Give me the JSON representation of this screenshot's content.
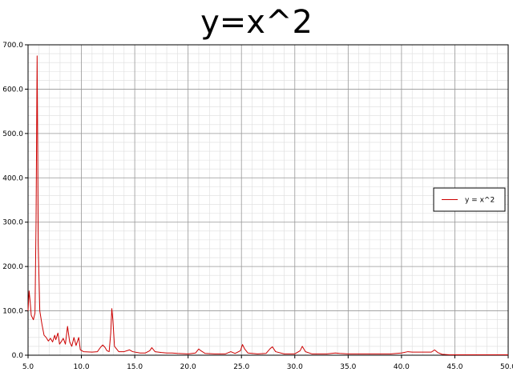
{
  "chart_data": {
    "type": "line",
    "title": "y=x^2",
    "xlabel": "",
    "ylabel": "",
    "xlim": [
      5.0,
      50.0
    ],
    "ylim": [
      0.0,
      700.0
    ],
    "grid": true,
    "minor_grid": true,
    "legend_position": "right",
    "x_ticks": [
      "5.0",
      "10.0",
      "15.0",
      "20.0",
      "25.0",
      "30.0",
      "35.0",
      "40.0",
      "45.0",
      "50.0"
    ],
    "y_ticks": [
      "0.0",
      "100.0",
      "200.0",
      "300.0",
      "400.0",
      "500.0",
      "600.0",
      "700.0"
    ],
    "series": [
      {
        "name": "y = x^2",
        "color": "#cc0000",
        "points": [
          [
            5.0,
            100
          ],
          [
            5.1,
            145
          ],
          [
            5.2,
            120
          ],
          [
            5.3,
            90
          ],
          [
            5.5,
            80
          ],
          [
            5.65,
            95
          ],
          [
            5.75,
            300
          ],
          [
            5.85,
            675
          ],
          [
            5.95,
            250
          ],
          [
            6.1,
            100
          ],
          [
            6.3,
            70
          ],
          [
            6.5,
            45
          ],
          [
            6.7,
            40
          ],
          [
            6.9,
            32
          ],
          [
            7.1,
            38
          ],
          [
            7.3,
            30
          ],
          [
            7.5,
            45
          ],
          [
            7.6,
            35
          ],
          [
            7.8,
            50
          ],
          [
            7.95,
            25
          ],
          [
            8.1,
            30
          ],
          [
            8.3,
            38
          ],
          [
            8.5,
            25
          ],
          [
            8.7,
            65
          ],
          [
            8.9,
            30
          ],
          [
            9.1,
            20
          ],
          [
            9.3,
            40
          ],
          [
            9.5,
            22
          ],
          [
            9.75,
            40
          ],
          [
            9.9,
            12
          ],
          [
            10.2,
            8
          ],
          [
            11.0,
            7
          ],
          [
            11.5,
            8
          ],
          [
            11.8,
            18
          ],
          [
            12.0,
            23
          ],
          [
            12.2,
            18
          ],
          [
            12.4,
            10
          ],
          [
            12.6,
            8
          ],
          [
            12.75,
            50
          ],
          [
            12.85,
            105
          ],
          [
            12.95,
            80
          ],
          [
            13.1,
            20
          ],
          [
            13.5,
            8
          ],
          [
            14.0,
            8
          ],
          [
            14.5,
            12
          ],
          [
            14.8,
            8
          ],
          [
            15.5,
            5
          ],
          [
            16.0,
            5
          ],
          [
            16.4,
            10
          ],
          [
            16.6,
            17
          ],
          [
            16.9,
            8
          ],
          [
            17.5,
            6
          ],
          [
            18.0,
            5
          ],
          [
            18.5,
            5
          ],
          [
            19.0,
            4
          ],
          [
            20.0,
            3
          ],
          [
            20.7,
            5
          ],
          [
            21.0,
            14
          ],
          [
            21.2,
            10
          ],
          [
            21.6,
            4
          ],
          [
            22.5,
            3
          ],
          [
            23.5,
            3
          ],
          [
            24.0,
            8
          ],
          [
            24.4,
            4
          ],
          [
            24.9,
            10
          ],
          [
            25.1,
            24
          ],
          [
            25.3,
            14
          ],
          [
            25.6,
            5
          ],
          [
            26.5,
            3
          ],
          [
            27.3,
            4
          ],
          [
            27.7,
            15
          ],
          [
            27.9,
            19
          ],
          [
            28.2,
            8
          ],
          [
            29.0,
            3
          ],
          [
            30.0,
            3
          ],
          [
            30.5,
            10
          ],
          [
            30.7,
            20
          ],
          [
            31.0,
            8
          ],
          [
            31.6,
            3
          ],
          [
            33.0,
            3
          ],
          [
            33.8,
            5
          ],
          [
            34.2,
            4
          ],
          [
            35.0,
            3
          ],
          [
            37.0,
            3
          ],
          [
            39.0,
            3
          ],
          [
            40.0,
            5
          ],
          [
            40.6,
            8
          ],
          [
            41.0,
            7
          ],
          [
            42.0,
            7
          ],
          [
            42.8,
            7
          ],
          [
            43.1,
            12
          ],
          [
            43.4,
            6
          ],
          [
            43.8,
            2
          ],
          [
            44.5,
            1
          ],
          [
            46.0,
            1
          ],
          [
            48.0,
            1
          ],
          [
            50.0,
            1
          ]
        ]
      }
    ]
  }
}
